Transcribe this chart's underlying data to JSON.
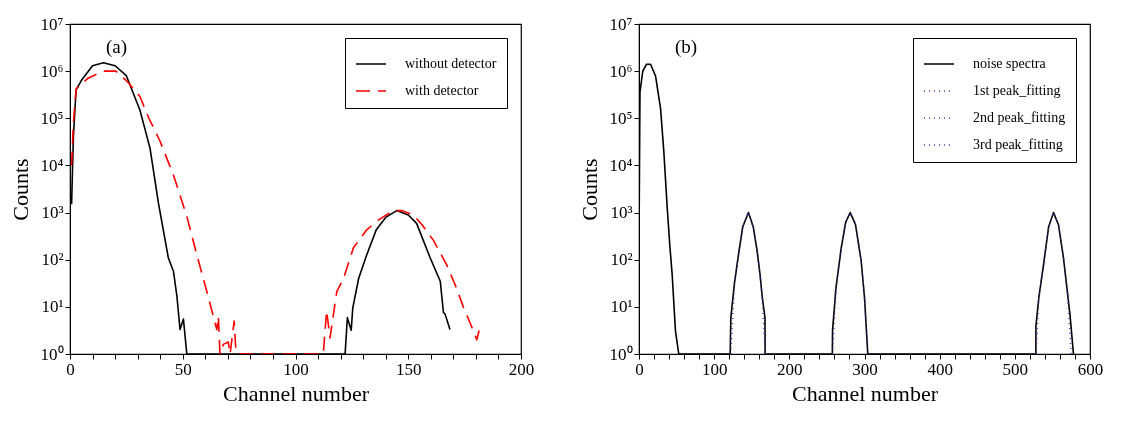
{
  "chart_data": [
    {
      "type": "line",
      "xlabel": "Channel number",
      "ylabel": "Counts",
      "annotations": [
        "(a)"
      ],
      "log": "y",
      "legend": "top right",
      "xlim": [
        0,
        200
      ],
      "ylim": [
        1,
        10000000
      ],
      "xticks": [
        0,
        {
          "value": 10,
          "label": null
        },
        {
          "value": 20,
          "label": null
        },
        {
          "value": 30,
          "label": null
        },
        {
          "value": 40,
          "label": null
        },
        50,
        {
          "value": 60,
          "label": null
        },
        {
          "value": 70,
          "label": null
        },
        {
          "value": 80,
          "label": null
        },
        {
          "value": 90,
          "label": null
        },
        100,
        {
          "value": 110,
          "label": null
        },
        {
          "value": 120,
          "label": null
        },
        {
          "value": 130,
          "label": null
        },
        {
          "value": 140,
          "label": null
        },
        150,
        {
          "value": 160,
          "label": null
        },
        {
          "value": 170,
          "label": null
        },
        {
          "value": 180,
          "label": null
        },
        {
          "value": 190,
          "label": null
        },
        200
      ],
      "yticks": [
        {
          "value": 1,
          "label": "10⁰"
        },
        {
          "value": 10,
          "label": "10¹"
        },
        {
          "value": 100,
          "label": "10²"
        },
        {
          "value": 1000,
          "label": "10³"
        },
        {
          "value": 10000,
          "label": "10⁴"
        },
        {
          "value": 100000,
          "label": "10⁵"
        },
        {
          "value": 1000000,
          "label": "10⁶"
        },
        {
          "value": 10000000,
          "label": "10⁷"
        }
      ],
      "series": [
        {
          "name": "without detector",
          "color": "#000000",
          "line_style": "solid",
          "x": [
            0.7,
            1.5,
            2.7,
            5,
            10,
            14.8,
            20,
            25,
            31,
            35.5,
            39.2,
            43.6,
            45.9,
            47.4,
            48.8,
            50.3,
            51.8,
            122,
            123,
            124.7,
            125.4,
            128,
            131.4,
            135.8,
            140,
            144.9,
            150,
            153.7,
            159.7,
            164.2,
            165.6,
            166.3,
            168.5
          ],
          "values": [
            1500,
            40000,
            400000,
            630000,
            1300000,
            1500000,
            1300000,
            800000,
            150000,
            23000,
            1600,
            110,
            56,
            17,
            3.3,
            5.5,
            1,
            1,
            5.9,
            3.2,
            9.5,
            40,
            120,
            430,
            790,
            1100,
            890,
            590,
            110,
            35,
            7.6,
            7.1,
            3.3
          ]
        },
        {
          "name": "with detector",
          "color": "#ff0000",
          "line_style": "dashed",
          "x": [
            0.7,
            1.5,
            2.7,
            8,
            14.8,
            20.3,
            25,
            31,
            35,
            39.9,
            45.9,
            51.8,
            56.2,
            60.7,
            65.1,
            65.8,
            66.5,
            68,
            70.2,
            71,
            72.8,
            73.5,
            74,
            112.3,
            113.8,
            115.3,
            118.3,
            121.3,
            125.7,
            131.6,
            137,
            143.4,
            147,
            152.2,
            156,
            161.1,
            167,
            171.4,
            174.4,
            177.4,
            180.4,
            181.8
          ],
          "values": [
            10000,
            79000,
            420000,
            710000,
            1000000,
            1000000,
            630000,
            290000,
            100000,
            33000,
            6200,
            830,
            130,
            21,
            3.3,
            6.3,
            1,
            1.6,
            1.8,
            1,
            5,
            1.3,
            1,
            1,
            8.3,
            2.2,
            21,
            40,
            180,
            430,
            710,
            1100,
            1100,
            890,
            560,
            260,
            79,
            25,
            10,
            4.6,
            2,
            3.7
          ]
        }
      ]
    },
    {
      "type": "line",
      "xlabel": "Channel number",
      "ylabel": "Counts",
      "annotations": [
        "(b)"
      ],
      "log": "y",
      "legend": "top right",
      "xlim": [
        0,
        600
      ],
      "ylim": [
        1,
        10000000
      ],
      "xticks": [
        0,
        {
          "value": 20,
          "label": null
        },
        {
          "value": 40,
          "label": null
        },
        {
          "value": 60,
          "label": null
        },
        {
          "value": 80,
          "label": null
        },
        100,
        {
          "value": 120,
          "label": null
        },
        {
          "value": 140,
          "label": null
        },
        {
          "value": 160,
          "label": null
        },
        {
          "value": 180,
          "label": null
        },
        200,
        {
          "value": 220,
          "label": null
        },
        {
          "value": 240,
          "label": null
        },
        {
          "value": 260,
          "label": null
        },
        {
          "value": 280,
          "label": null
        },
        300,
        {
          "value": 320,
          "label": null
        },
        {
          "value": 340,
          "label": null
        },
        {
          "value": 360,
          "label": null
        },
        {
          "value": 380,
          "label": null
        },
        400,
        {
          "value": 420,
          "label": null
        },
        {
          "value": 440,
          "label": null
        },
        {
          "value": 460,
          "label": null
        },
        {
          "value": 480,
          "label": null
        },
        500,
        {
          "value": 520,
          "label": null
        },
        {
          "value": 540,
          "label": null
        },
        {
          "value": 560,
          "label": null
        },
        {
          "value": 580,
          "label": null
        },
        600
      ],
      "yticks": [
        {
          "value": 1,
          "label": "10⁰"
        },
        {
          "value": 10,
          "label": "10¹"
        },
        {
          "value": 100,
          "label": "10²"
        },
        {
          "value": 1000,
          "label": "10³"
        },
        {
          "value": 10000,
          "label": "10⁴"
        },
        {
          "value": 100000,
          "label": "10⁵"
        },
        {
          "value": 1000000,
          "label": "10⁶"
        },
        {
          "value": 10000000,
          "label": "10⁷"
        }
      ],
      "series": [
        {
          "name": "noise spectra",
          "color": "#000000",
          "line_style": "solid",
          "x": [
            0.3,
            1.3,
            5,
            10,
            15.4,
            22,
            28.7,
            33,
            37.5,
            41,
            44.1,
            48.5,
            52.9,
            121.3,
            122.2,
            127,
            132.4,
            138,
            145.6,
            152,
            157,
            161,
            164,
            167.6,
            167.8,
            257.2,
            257.5,
            262,
            269.1,
            275,
            281,
            288,
            295.6,
            300,
            304.4,
            528,
            528.1,
            532,
            538.2,
            545,
            551.5,
            558,
            564.7,
            570,
            573.5,
            578
          ],
          "values": [
            1300,
            360000,
            1000000,
            1400000,
            1400000,
            790000,
            160000,
            20000,
            1300,
            200,
            49,
            3.1,
            1,
            1,
            5.9,
            32,
            130,
            500,
            1000,
            500,
            160,
            49,
            16,
            5.9,
            1,
            1,
            3.2,
            25,
            180,
            630,
            1000,
            560,
            93,
            16,
            1,
            1,
            4,
            16,
            79,
            500,
            1000,
            560,
            110,
            20,
            6.5,
            1
          ]
        },
        {
          "name": "1st peak_fitting",
          "color": "#4040b0",
          "line_style": "dotted",
          "x": [
            122,
            127,
            132.4,
            138,
            145.6,
            152,
            157,
            161,
            164,
            168
          ],
          "values": [
            1,
            32,
            130,
            500,
            1000,
            500,
            160,
            49,
            16,
            1
          ]
        },
        {
          "name": "2nd peak_fitting",
          "color": "#4040b0",
          "line_style": "dotted",
          "x": [
            257.5,
            262,
            269.1,
            275,
            281,
            288,
            295.6,
            300,
            304
          ],
          "values": [
            1,
            25,
            180,
            630,
            1000,
            560,
            93,
            16,
            1
          ]
        },
        {
          "name": "3rd peak_fitting",
          "color": "#4040b0",
          "line_style": "dotted",
          "x": [
            528,
            532,
            538.2,
            545,
            551.5,
            558,
            564.7,
            570,
            575
          ],
          "values": [
            1,
            16,
            79,
            500,
            1000,
            560,
            110,
            20,
            1
          ]
        }
      ]
    }
  ]
}
